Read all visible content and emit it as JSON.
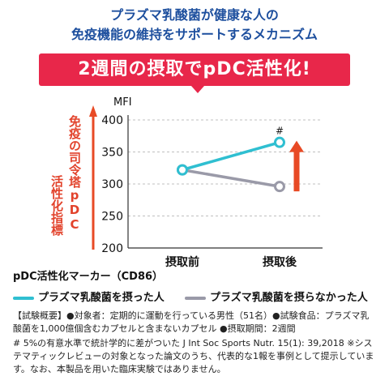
{
  "header": {
    "line1": "プラズマ乳酸菌が健康な人の",
    "line2": "免疫機能の維持をサポートするメカニズム",
    "banner": "2週間の摂取でpDC活性化!"
  },
  "side_label": {
    "line1": "免疫の司令塔pDC",
    "line2": "活性化指標"
  },
  "chart_data": {
    "type": "line",
    "categories": [
      "摂取前",
      "摂取後"
    ],
    "ylabel": "MFI",
    "ylim": [
      200,
      400
    ],
    "yticks": [
      200,
      250,
      300,
      350,
      400
    ],
    "grid": true,
    "xlabel": "pDC活性化マーカー（CD86）",
    "series": [
      {
        "name": "プラズマ乳酸菌を摂った人",
        "values": [
          322,
          365
        ],
        "color": "#2fbfd1",
        "annotation": "#"
      },
      {
        "name": "プラズマ乳酸菌を摂らなかった人",
        "values": [
          322,
          296
        ],
        "color": "#9a9aa8"
      }
    ],
    "legend_position": "bottom"
  },
  "colors": {
    "heading": "#1d4f9e",
    "banner": "#e8274a",
    "arrow": "#e84a25"
  },
  "notes": {
    "overview": "【試験概要】●対象者：定期的に運動を行っている男性（51名）●試験食品：プラズマ乳酸菌を1,000億個含むカプセルと含まないカプセル ●摂取期間：2週間",
    "footnote": "# 5%の有意水準で統計学的に差がついた J Int Soc Sports Nutr. 15(1): 39,2018 ※システマティックレビューの対象となった論文のうち、代表的な1報を事例として提示しています。なお、本製品を用いた臨床実験ではありません。"
  }
}
